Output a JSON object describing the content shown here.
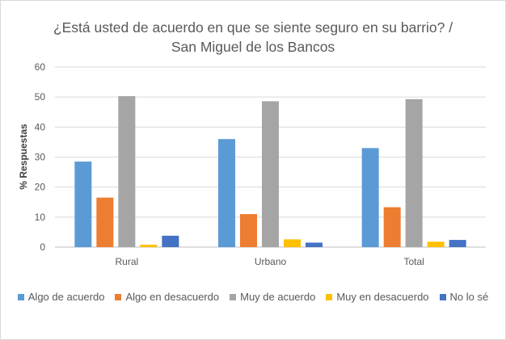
{
  "chart_data": {
    "type": "bar",
    "title_line1": "¿Está usted de acuerdo en que se siente seguro en su barrio? /",
    "title_line2": "San Miguel de los Bancos",
    "ylabel": "% Respuestas",
    "xlabel": "",
    "ylim": [
      0,
      60
    ],
    "yticks": [
      0,
      10,
      20,
      30,
      40,
      50,
      60
    ],
    "categories": [
      "Rural",
      "Urbano",
      "Total"
    ],
    "grid": true,
    "legend_position": "bottom",
    "series": [
      {
        "name": "Algo de acuerdo",
        "color": "#5b9bd5",
        "values": [
          28.5,
          36,
          33
        ]
      },
      {
        "name": "Algo en desacuerdo",
        "color": "#ed7d31",
        "values": [
          16.5,
          11,
          13.3
        ]
      },
      {
        "name": "Muy de acuerdo",
        "color": "#a5a5a5",
        "values": [
          50.3,
          48.6,
          49.3
        ]
      },
      {
        "name": "Muy en desacuerdo",
        "color": "#ffc000",
        "values": [
          0.8,
          2.6,
          1.8
        ]
      },
      {
        "name": "No lo sé",
        "color": "#4472c4",
        "values": [
          3.8,
          1.5,
          2.4
        ]
      }
    ]
  }
}
